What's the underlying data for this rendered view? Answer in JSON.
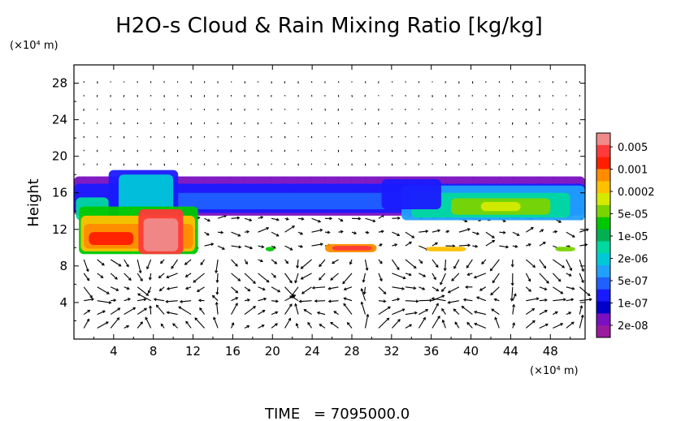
{
  "chart_data": {
    "type": "heatmap",
    "title": "H2O-s Cloud & Rain Mixing Ratio [kg/kg]",
    "ylabel": "Height",
    "y_unit": "(×10⁴ m)",
    "x_unit": "(×10⁴ m)",
    "xlim": [
      0,
      51.5
    ],
    "ylim": [
      0,
      30
    ],
    "x_ticks": [
      4,
      8,
      12,
      16,
      20,
      24,
      28,
      32,
      36,
      40,
      44,
      48
    ],
    "y_ticks": [
      4,
      8,
      12,
      16,
      20,
      24,
      28
    ],
    "time_label": "TIME",
    "time_value": "= 7095000.0",
    "colorbar": {
      "scale": "log",
      "labels": [
        "0.005",
        "0.001",
        "0.0002",
        "5e-05",
        "1e-05",
        "2e-06",
        "5e-07",
        "1e-07",
        "2e-08"
      ],
      "colors": [
        "#f08a8a",
        "#ff3a3a",
        "#ff1e00",
        "#ff8c00",
        "#ffc000",
        "#d4ea00",
        "#7ad400",
        "#00c800",
        "#00b050",
        "#00d8a0",
        "#00c8d8",
        "#20a0ff",
        "#2060ff",
        "#1a1aff",
        "#0000c8",
        "#7a10c0",
        "#9a1aa0"
      ]
    },
    "cloud_regions": [
      {
        "name": "main-layer",
        "x": [
          0,
          51.5
        ],
        "y": [
          13,
          17.5
        ],
        "level": "1e-06"
      },
      {
        "name": "left-convective-core",
        "x": [
          0.5,
          12.5
        ],
        "y": [
          9,
          18.5
        ],
        "level": "0.001"
      },
      {
        "name": "right-layer-core",
        "x": [
          33,
          50
        ],
        "y": [
          13,
          16.5
        ],
        "level": "5e-05"
      },
      {
        "name": "rain-band",
        "x": [
          19,
          50
        ],
        "y": [
          9.5,
          10.3
        ],
        "level": "0.0002"
      }
    ],
    "wind_vectors": "arrows throughout domain"
  }
}
